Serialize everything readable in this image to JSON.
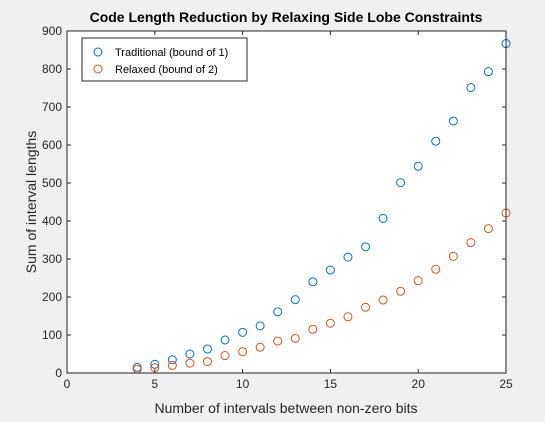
{
  "chart_data": {
    "type": "scatter",
    "title": "Code Length Reduction by Relaxing Side Lobe Constraints",
    "xlabel": "Number of intervals between non-zero bits",
    "ylabel": "Sum of interval lengths",
    "xlim": [
      0,
      25
    ],
    "ylim": [
      0,
      900
    ],
    "xticks": [
      0,
      5,
      10,
      15,
      20,
      25
    ],
    "yticks": [
      0,
      100,
      200,
      300,
      400,
      500,
      600,
      700,
      800,
      900
    ],
    "grid": false,
    "legend_position": "top-left",
    "marker": "open-circle",
    "series": [
      {
        "name": "Traditional (bound of 1)",
        "color": "#0072bd",
        "x": [
          4,
          5,
          6,
          7,
          8,
          9,
          10,
          11,
          12,
          13,
          14,
          15,
          16,
          17,
          18,
          19,
          20,
          21,
          22,
          23,
          24,
          25
        ],
        "y": [
          15,
          23,
          35,
          50,
          63,
          87,
          107,
          124,
          161,
          193,
          240,
          271,
          305,
          332,
          407,
          501,
          544,
          610,
          663,
          751,
          793,
          867
        ]
      },
      {
        "name": "Relaxed (bound of 2)",
        "color": "#d95319",
        "x": [
          4,
          5,
          6,
          7,
          8,
          9,
          10,
          11,
          12,
          13,
          14,
          15,
          16,
          17,
          18,
          19,
          20,
          21,
          22,
          23,
          24,
          25
        ],
        "y": [
          10,
          14,
          20,
          26,
          30,
          46,
          56,
          68,
          84,
          91,
          115,
          131,
          148,
          173,
          192,
          215,
          243,
          273,
          307,
          343,
          380,
          421
        ]
      }
    ]
  }
}
